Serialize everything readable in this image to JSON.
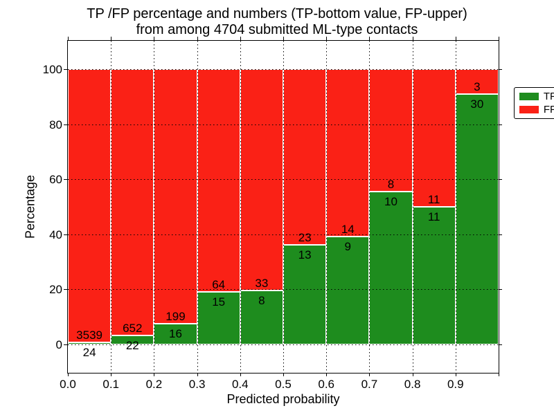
{
  "title": {
    "line1": "TP /FP percentage and numbers (TP-bottom value, FP-upper)",
    "line2": "from among 4704 submitted ML-type contacts"
  },
  "chart_data": {
    "type": "bar",
    "stacked": true,
    "title": "TP /FP percentage and numbers (TP-bottom value, FP-upper)\nfrom among 4704 submitted ML-type contacts",
    "xlabel": "Predicted probability",
    "ylabel": "Percentage",
    "total_submitted_contacts": "4704",
    "x_tick_labels": [
      "0.0",
      "0.1",
      "0.2",
      "0.3",
      "0.4",
      "0.5",
      "0.6",
      "0.7",
      "0.8",
      "0.9"
    ],
    "y_ticks": [
      0,
      20,
      40,
      60,
      80,
      100
    ],
    "xlim": [
      0.0,
      1.0
    ],
    "ylim": [
      -10.3,
      110.3
    ],
    "grid": "dotted, both axes, drawn over bars",
    "colors": {
      "tp": "#1e8c1e",
      "fp": "#fa2116"
    },
    "legend": {
      "position": "upper right",
      "entries": [
        {
          "label": "TP",
          "color": "#1e8c1e"
        },
        {
          "label": "FP",
          "color": "#fa2116"
        }
      ]
    },
    "bins": [
      {
        "x_range": [
          0.0,
          0.1
        ],
        "tp_count": 24,
        "fp_count": 3539,
        "tp_pct": 0.67,
        "fp_pct": 99.33
      },
      {
        "x_range": [
          0.1,
          0.2
        ],
        "tp_count": 22,
        "fp_count": 652,
        "tp_pct": 3.26,
        "fp_pct": 96.74
      },
      {
        "x_range": [
          0.2,
          0.3
        ],
        "tp_count": 16,
        "fp_count": 199,
        "tp_pct": 7.44,
        "fp_pct": 92.56
      },
      {
        "x_range": [
          0.3,
          0.4
        ],
        "tp_count": 15,
        "fp_count": 64,
        "tp_pct": 18.99,
        "fp_pct": 81.01
      },
      {
        "x_range": [
          0.4,
          0.5
        ],
        "tp_count": 8,
        "fp_count": 33,
        "tp_pct": 19.51,
        "fp_pct": 80.49
      },
      {
        "x_range": [
          0.5,
          0.6
        ],
        "tp_count": 13,
        "fp_count": 23,
        "tp_pct": 36.11,
        "fp_pct": 63.89
      },
      {
        "x_range": [
          0.6,
          0.7
        ],
        "tp_count": 9,
        "fp_count": 14,
        "tp_pct": 39.13,
        "fp_pct": 60.87
      },
      {
        "x_range": [
          0.7,
          0.8
        ],
        "tp_count": 10,
        "fp_count": 8,
        "tp_pct": 55.56,
        "fp_pct": 44.44
      },
      {
        "x_range": [
          0.8,
          0.9
        ],
        "tp_count": 11,
        "fp_count": 11,
        "tp_pct": 50.0,
        "fp_pct": 50.0
      },
      {
        "x_range": [
          0.9,
          1.0
        ],
        "tp_count": 30,
        "fp_count": 3,
        "tp_pct": 90.91,
        "fp_pct": 9.09
      }
    ]
  }
}
